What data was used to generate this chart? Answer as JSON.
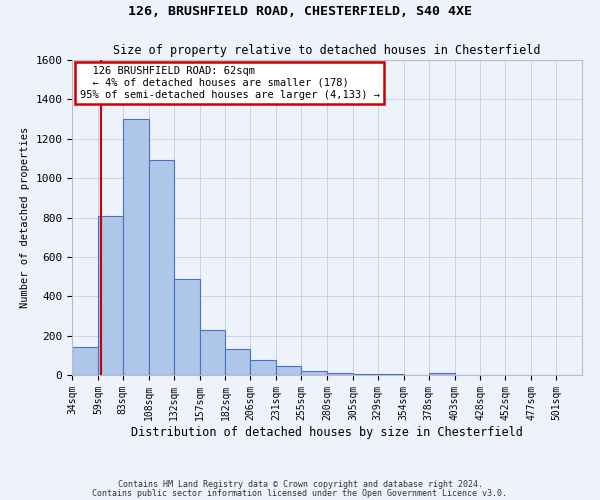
{
  "title1": "126, BRUSHFIELD ROAD, CHESTERFIELD, S40 4XE",
  "title2": "Size of property relative to detached houses in Chesterfield",
  "xlabel": "Distribution of detached houses by size in Chesterfield",
  "ylabel": "Number of detached properties",
  "footer1": "Contains HM Land Registry data © Crown copyright and database right 2024.",
  "footer2": "Contains public sector information licensed under the Open Government Licence v3.0.",
  "annotation_title": "126 BRUSHFIELD ROAD: 62sqm",
  "annotation_line1": "← 4% of detached houses are smaller (178)",
  "annotation_line2": "95% of semi-detached houses are larger (4,133) →",
  "property_size": 62,
  "bar_edges": [
    34,
    59,
    83,
    108,
    132,
    157,
    182,
    206,
    231,
    255,
    280,
    305,
    329,
    354,
    378,
    403,
    428,
    452,
    477,
    501,
    526
  ],
  "bar_heights": [
    140,
    810,
    1300,
    1090,
    490,
    230,
    130,
    75,
    45,
    20,
    12,
    5,
    3,
    2,
    10,
    1,
    1,
    1,
    1,
    1
  ],
  "bar_color": "#aec6e8",
  "bar_edge_color": "#4472c4",
  "vline_color": "#cc0000",
  "annotation_box_color": "#cc0000",
  "background_color": "#eef2fb",
  "grid_color": "#c5cde8",
  "ylim": [
    0,
    1600
  ],
  "yticks": [
    0,
    200,
    400,
    600,
    800,
    1000,
    1200,
    1400,
    1600
  ]
}
